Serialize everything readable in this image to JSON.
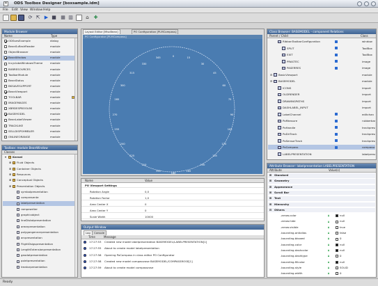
{
  "app": {
    "title": "ODS Toolbox Designer [boxsample.idm]"
  },
  "menu": [
    "File",
    "Edit",
    "View",
    "Window",
    "Help"
  ],
  "bean_browser": {
    "title": "Module Browser",
    "col_name": "Name",
    "col_type": "Type",
    "rows": [
      {
        "name": "ODSsesExample",
        "type": "dialog",
        "checked": true
      },
      {
        "name": "BeanSuflashReader",
        "type": "module",
        "checked": false
      },
      {
        "name": "ObjectBrowser",
        "type": "module",
        "checked": false
      },
      {
        "name": "BeanWindow",
        "type": "module",
        "checked": true,
        "sel": true
      },
      {
        "name": "IncyclobeWindowsTheme",
        "type": "module",
        "checked": false
      },
      {
        "name": "BXBRESOURCES",
        "type": "module",
        "checked": false
      },
      {
        "name": "ToolbarModule",
        "type": "module",
        "checked": false
      },
      {
        "name": "BeanStatus",
        "type": "module",
        "checked": false
      },
      {
        "name": "BKSAVESUPPORT",
        "type": "module",
        "checked": false
      },
      {
        "name": "BeanViewport",
        "type": "module",
        "checked": true
      },
      {
        "name": "TOOLBAR",
        "type": "module",
        "checked": false
      },
      {
        "name": "IMAGEMAGES",
        "type": "module",
        "checked": false
      },
      {
        "name": "XBRDESPBOOLBS",
        "type": "module",
        "checked": false
      },
      {
        "name": "BASEMODEL",
        "type": "module",
        "checked": true
      },
      {
        "name": "BeanLabelViewer",
        "type": "module",
        "checked": false
      },
      {
        "name": "TRACKLIKE",
        "type": "module",
        "checked": false
      },
      {
        "name": "SELLDISPSHMBLER",
        "type": "module",
        "checked": false
      },
      {
        "name": "ONLINEORANGE",
        "type": "module",
        "checked": false
      }
    ]
  },
  "module_browser": {
    "title": "Toolbox: module BeanWindow",
    "col": "Classes",
    "rows": [
      {
        "label": "Kernel",
        "lvl": 0,
        "kind": "folder"
      },
      {
        "label": "Fluid Objects",
        "lvl": 1,
        "kind": "folder"
      },
      {
        "label": "Container Objects",
        "lvl": 1,
        "kind": "folder"
      },
      {
        "label": "Resources",
        "lvl": 1,
        "kind": "folder"
      },
      {
        "label": "Conceptual Objects",
        "lvl": 1,
        "kind": "folder"
      },
      {
        "label": "Presentation Objects",
        "lvl": 1,
        "kind": "folder"
      },
      {
        "label": "symbolpresentation",
        "lvl": 2,
        "kind": "doc"
      },
      {
        "label": "compresente",
        "lvl": 2,
        "kind": "doc"
      },
      {
        "label": "labelpresentation",
        "lvl": 2,
        "kind": "doc",
        "sel": true
      },
      {
        "label": "rampewriter",
        "lvl": 2,
        "kind": "doc"
      },
      {
        "label": "graphicobject",
        "lvl": 2,
        "kind": "doc"
      },
      {
        "label": "lineDistatpresentation",
        "lvl": 2,
        "kind": "doc"
      },
      {
        "label": "arearpresentation",
        "lvl": 2,
        "kind": "doc"
      },
      {
        "label": "polygongennerpresentation",
        "lvl": 2,
        "kind": "doc"
      },
      {
        "label": "arcpresentation",
        "lvl": 2,
        "kind": "doc"
      },
      {
        "label": "FlightDsigspresentation",
        "lvl": 2,
        "kind": "doc"
      },
      {
        "label": "LengthExtensionpresentation",
        "lvl": 2,
        "kind": "doc"
      },
      {
        "label": "geodatpresentation",
        "lvl": 2,
        "kind": "doc"
      },
      {
        "label": "pointpresentation",
        "lvl": 2,
        "kind": "doc"
      },
      {
        "label": "treatorpresentation",
        "lvl": 2,
        "kind": "doc"
      }
    ]
  },
  "center": {
    "tabs": [
      "Layout Editor [MiscBean]",
      "PO Configuration [PLMCompass]"
    ],
    "compass_title": "PO Configurator [PLMCompass]",
    "ticks": [
      "0",
      "15",
      "30",
      "45",
      "60",
      "75",
      "90",
      "105",
      "120",
      "135",
      "150",
      "165",
      "180",
      "195",
      "210",
      "225",
      "240",
      "255",
      "270",
      "285",
      "300",
      "315",
      "330",
      "345"
    ],
    "props_cols": {
      "name": "Name",
      "value": "Value"
    },
    "props": [
      {
        "name": "PO Viewport Settings",
        "value": "",
        "grp": true
      },
      {
        "name": "Rotation Angle",
        "value": "0,0"
      },
      {
        "name": "Rotation Factor",
        "value": "1,0"
      },
      {
        "name": "Area Center X",
        "value": "0"
      },
      {
        "name": "Area Center Y",
        "value": "0"
      },
      {
        "name": "Scale Width",
        "value": "10000"
      }
    ]
  },
  "output": {
    "title": "Output Window",
    "tabs": [
      "Log",
      "Console"
    ],
    "col_time": "Time",
    "col_msg": "Message",
    "rows": [
      {
        "time": "17:27:53",
        "msg": "Created new model labelpresentation BASEMODEL/LABELPRESENTATION[1]"
      },
      {
        "time": "17:27:55",
        "msg": "About to create model labelpresentation"
      },
      {
        "time": "17:27:56",
        "msg": "Opening PoCompass in class editor PO Configurator"
      },
      {
        "time": "17:27:58",
        "msg": "Created new model compassrose BASEMODEL/COMPASSROSE[1]"
      },
      {
        "time": "17:27:59",
        "msg": "About to create model compassrose"
      }
    ]
  },
  "classes": {
    "title": "Class Browser: BASEMODEL - component Relations",
    "col_parent": "Parent / Child",
    "col_class": "Class",
    "rows": [
      {
        "label": "RibbonToolbarConfiguration",
        "cls": "window",
        "lvl": 1,
        "mark": true
      },
      {
        "label": "SPLIT",
        "cls": "ToolBox",
        "lvl": 2,
        "mark": true
      },
      {
        "label": "EXIT",
        "cls": "ToolBox",
        "lvl": 2,
        "mark": true
      },
      {
        "label": "PRASTEC",
        "cls": "image",
        "lvl": 2,
        "mark": true
      },
      {
        "label": "PASERRES",
        "cls": "image",
        "lvl": 2,
        "mark": true
      },
      {
        "label": "BasicViewport",
        "cls": "module",
        "lvl": 0,
        "mark": false
      },
      {
        "label": "BASEMODEL",
        "cls": "module",
        "lvl": 0,
        "mark": false
      },
      {
        "label": "ICONS",
        "cls": "import",
        "lvl": 1,
        "mark": false
      },
      {
        "label": "OLDRENDER",
        "cls": "import",
        "lvl": 1,
        "mark": false
      },
      {
        "label": "DRAWINGPATHS",
        "cls": "import",
        "lvl": 1,
        "mark": false
      },
      {
        "label": "DASHLABEL_INPUT",
        "cls": "import",
        "lvl": 1,
        "mark": false
      },
      {
        "label": "LabelChannel",
        "cls": "editchan",
        "lvl": 1,
        "mark": true
      },
      {
        "label": "PoMeasure",
        "cls": "rubberband",
        "lvl": 1,
        "mark": true
      },
      {
        "label": "PoHandle",
        "cls": "trackpresentat",
        "lvl": 1,
        "mark": true
      },
      {
        "label": "PoDirTrack",
        "cls": "trackpresentat",
        "lvl": 1,
        "mark": true
      },
      {
        "label": "PoSensorTrack",
        "cls": "trackpresentat",
        "lvl": 1,
        "mark": true
      },
      {
        "label": "PoCompass",
        "cls": "compassrose",
        "lvl": 1,
        "mark": true,
        "sel": true
      },
      {
        "label": "LABELPRESENTATION",
        "cls": "labelpresentat",
        "lvl": 1,
        "mark": false
      }
    ]
  },
  "attr": {
    "title": "Attribute Browser: labelpresentation LABELPRESENTATION",
    "col_attr": "Attribute",
    "col_val": "Value(s)",
    "rows": [
      {
        "name": "Standard",
        "grp": true
      },
      {
        "name": "Geometry",
        "grp": true
      },
      {
        "name": "Appearance",
        "grp": true
      },
      {
        "name": "Scroll Bar",
        "grp": true
      },
      {
        "name": "Text",
        "grp": true
      },
      {
        "name": "Hierarchy",
        "grp": true
      },
      {
        "name": "Others",
        "grp": true
      },
      {
        "name": ".arrow.color",
        "val": "null",
        "sw": "#111111"
      },
      {
        "name": ".arrow.hide",
        "val": "null",
        "sw": "#ffffff"
      },
      {
        "name": ".arrow.visible",
        "val": "true",
        "sw": "#ffffff"
      },
      {
        "name": ".bounding.antialias",
        "val": "false",
        "sw": "#ffffff"
      },
      {
        "name": ".bounding.bkoxed",
        "val": "0",
        "sw": "#ffffff"
      },
      {
        "name": ".bounding.color",
        "val": "null",
        "sw": "#111111"
      },
      {
        "name": ".bounding.dashcolor",
        "val": "null",
        "sw": "#111111"
      },
      {
        "name": ".bounding.dashtype",
        "val": "0",
        "sw": "#ffffff"
      },
      {
        "name": ".bounding.fillcolor",
        "val": "null",
        "sw": "#111111"
      },
      {
        "name": ".bounding.style",
        "val": "SOLID",
        "sw": "#ffffff"
      },
      {
        "name": ".bounding.width",
        "val": "0",
        "sw": "#ffffff"
      }
    ]
  },
  "status": {
    "text": "Ready"
  }
}
